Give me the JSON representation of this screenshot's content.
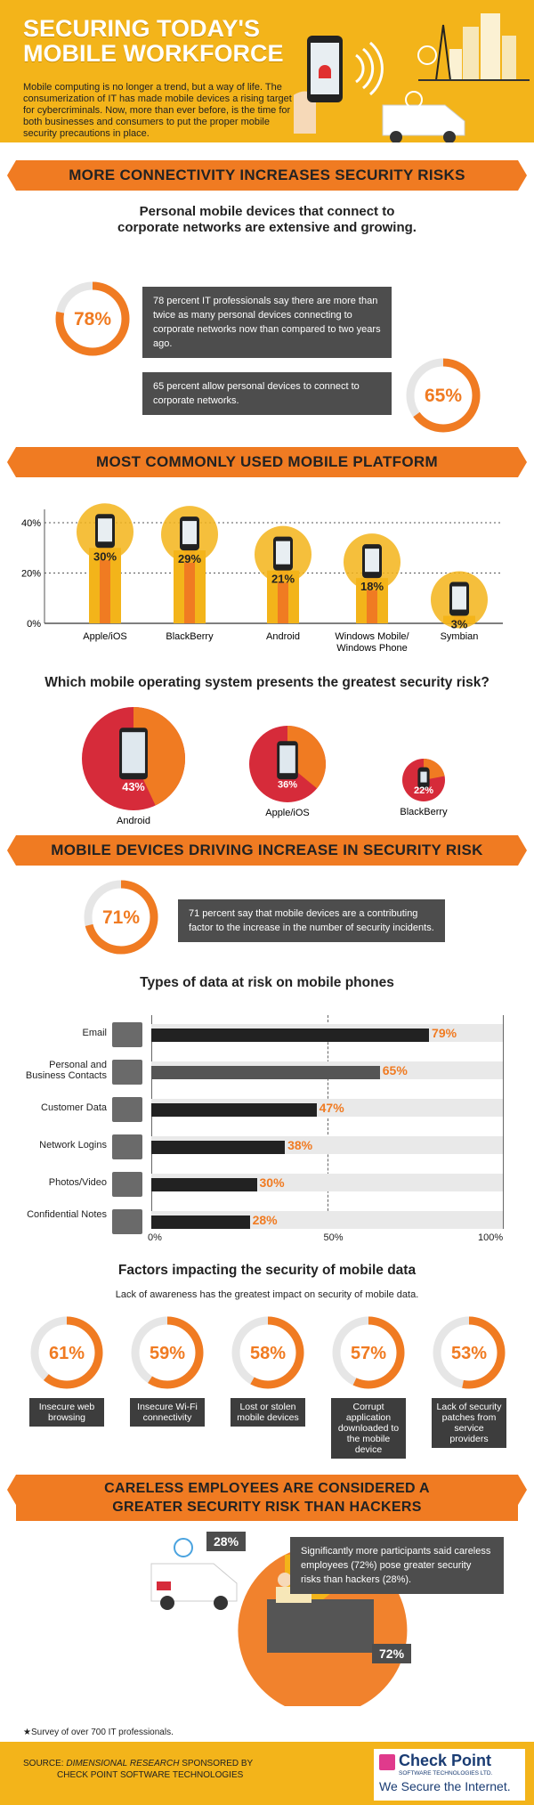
{
  "header": {
    "title_line1": "SECURING TODAY'S",
    "title_line2": "MOBILE WORKFORCE",
    "intro": "Mobile computing is no longer a trend, but a way of life. The consumerization of IT has made mobile devices a rising target for cybercriminals. Now, more than ever before, is the time for both businesses and consumers to put the proper mobile security precautions in place."
  },
  "section1": {
    "ribbon": "MORE CONNECTIVITY INCREASES SECURITY RISKS",
    "heading_line1": "Personal mobile devices that connect to",
    "heading_line2": "corporate networks are extensive and growing.",
    "stat1": {
      "value": "78%",
      "fraction": 0.78,
      "text": "78 percent IT professionals say there are more than twice as many personal devices connecting to corporate networks now than compared to two years ago."
    },
    "stat2": {
      "value": "65%",
      "fraction": 0.65,
      "text": "65 percent allow personal devices to connect to corporate networks."
    }
  },
  "section2": {
    "ribbon": "MOST COMMONLY USED MOBILE PLATFORM"
  },
  "chart_data": {
    "type": "bar",
    "categories": [
      "Apple/iOS",
      "BlackBerry",
      "Android",
      "Windows Mobile/ Windows Phone",
      "Symbian"
    ],
    "values": [
      30,
      29,
      21,
      18,
      3
    ],
    "value_labels": [
      "30%",
      "29%",
      "21%",
      "18%",
      "3%"
    ],
    "y_ticks": [
      "40%",
      "20%",
      "0%"
    ],
    "ylim": [
      0,
      40
    ]
  },
  "section3": {
    "heading": "Which mobile operating system presents the greatest security risk?",
    "items": [
      {
        "label": "Android",
        "value": "43%",
        "fraction": 0.43
      },
      {
        "label": "Apple/iOS",
        "value": "36%",
        "fraction": 0.36
      },
      {
        "label": "BlackBerry",
        "value": "22%",
        "fraction": 0.22
      }
    ]
  },
  "section4": {
    "ribbon": "MOBILE DEVICES DRIVING INCREASE IN SECURITY RISK",
    "stat": {
      "value": "71%",
      "fraction": 0.71,
      "text": "71 percent say that mobile devices are a contributing factor to the increase in the number of security incidents."
    },
    "heading": "Types of data at risk on mobile phones",
    "rows": [
      {
        "label": "Email",
        "value": "79%",
        "fraction": 0.79
      },
      {
        "label": "Personal and Business Contacts",
        "value": "65%",
        "fraction": 0.65
      },
      {
        "label": "Customer Data",
        "value": "47%",
        "fraction": 0.47
      },
      {
        "label": "Network Logins",
        "value": "38%",
        "fraction": 0.38
      },
      {
        "label": "Photos/Video",
        "value": "30%",
        "fraction": 0.3
      },
      {
        "label": "Confidential Notes",
        "value": "28%",
        "fraction": 0.28
      }
    ],
    "axis": [
      "0%",
      "50%",
      "100%"
    ]
  },
  "section5": {
    "heading": "Factors impacting the security of mobile data",
    "subheading": "Lack of awareness has the greatest impact on security of mobile data.",
    "factors": [
      {
        "value": "61%",
        "fraction": 0.61,
        "label": "Insecure web browsing"
      },
      {
        "value": "59%",
        "fraction": 0.59,
        "label": "Insecure Wi-Fi connectivity"
      },
      {
        "value": "58%",
        "fraction": 0.58,
        "label": "Lost or stolen mobile devices"
      },
      {
        "value": "57%",
        "fraction": 0.57,
        "label": "Corrupt application downloaded to the mobile device"
      },
      {
        "value": "53%",
        "fraction": 0.53,
        "label": "Lack of security patches from service providers"
      }
    ]
  },
  "section6": {
    "ribbon_line1": "CARELESS EMPLOYEES ARE CONSIDERED A",
    "ribbon_line2": "GREATER SECURITY RISK THAN HACKERS",
    "hackers": "28%",
    "employees": "72%",
    "text": "Significantly more participants said careless employees (72%) pose greater security risks than hackers (28%)."
  },
  "footer": {
    "note": "★Survey of over 700 IT professionals.",
    "source_line1_prefix": "SOURCE: ",
    "source_name": "DIMENSIONAL RESEARCH",
    "source_line1_suffix": " SPONSORED BY",
    "source_line2": "CHECK POINT SOFTWARE TECHNOLOGIES",
    "brand": "Check Point",
    "brand_sub": "SOFTWARE TECHNOLOGIES LTD.",
    "tagline": "We Secure the Internet."
  },
  "colors": {
    "orange": "#f07b22",
    "yellow": "#f3b41a",
    "dark": "#4d4d4d",
    "red": "#d62b3a"
  }
}
